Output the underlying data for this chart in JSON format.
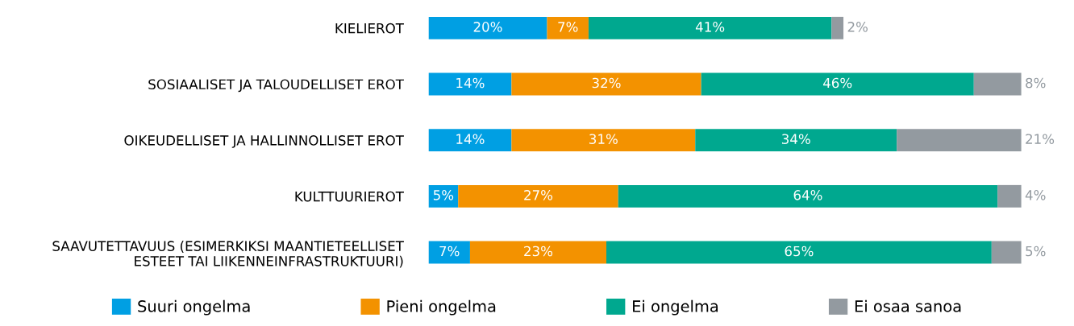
{
  "chart_data": {
    "type": "bar",
    "orientation": "horizontal",
    "stacked": true,
    "categories": [
      "KIELIEROT",
      "SOSIAALISET JA TALOUDELLISET EROT",
      "OIKEUDELLISET JA HALLINNOLLISET EROT",
      "KULTTUURIEROT",
      "SAAVUTETTAVUUS (ESIMERKIKSI MAANTIETEELLISET\nESTEET TAI LIIKENNEINFRASTRUKTUURI)"
    ],
    "series": [
      {
        "name": "Suuri ongelma",
        "color": "#009fe3",
        "values": [
          20,
          14,
          14,
          5,
          7
        ],
        "value_labels": [
          "20%",
          "14%",
          "14%",
          "5%",
          "7%"
        ]
      },
      {
        "name": "Pieni ongelma",
        "color": "#f39200",
        "values": [
          7,
          32,
          31,
          27,
          23
        ],
        "value_labels": [
          "7%",
          "32%",
          "31%",
          "27%",
          "23%"
        ]
      },
      {
        "name": "Ei ongelma",
        "color": "#00a88f",
        "values": [
          41,
          46,
          34,
          64,
          65
        ],
        "value_labels": [
          "41%",
          "46%",
          "34%",
          "64%",
          "65%"
        ]
      },
      {
        "name": "Ei osaa sanoa",
        "color": "#939aa0",
        "values": [
          2,
          8,
          21,
          4,
          5
        ],
        "value_labels": [
          "2%",
          "8%",
          "21%",
          "4%",
          "5%"
        ]
      }
    ],
    "legend": "bottom",
    "grid": false
  }
}
